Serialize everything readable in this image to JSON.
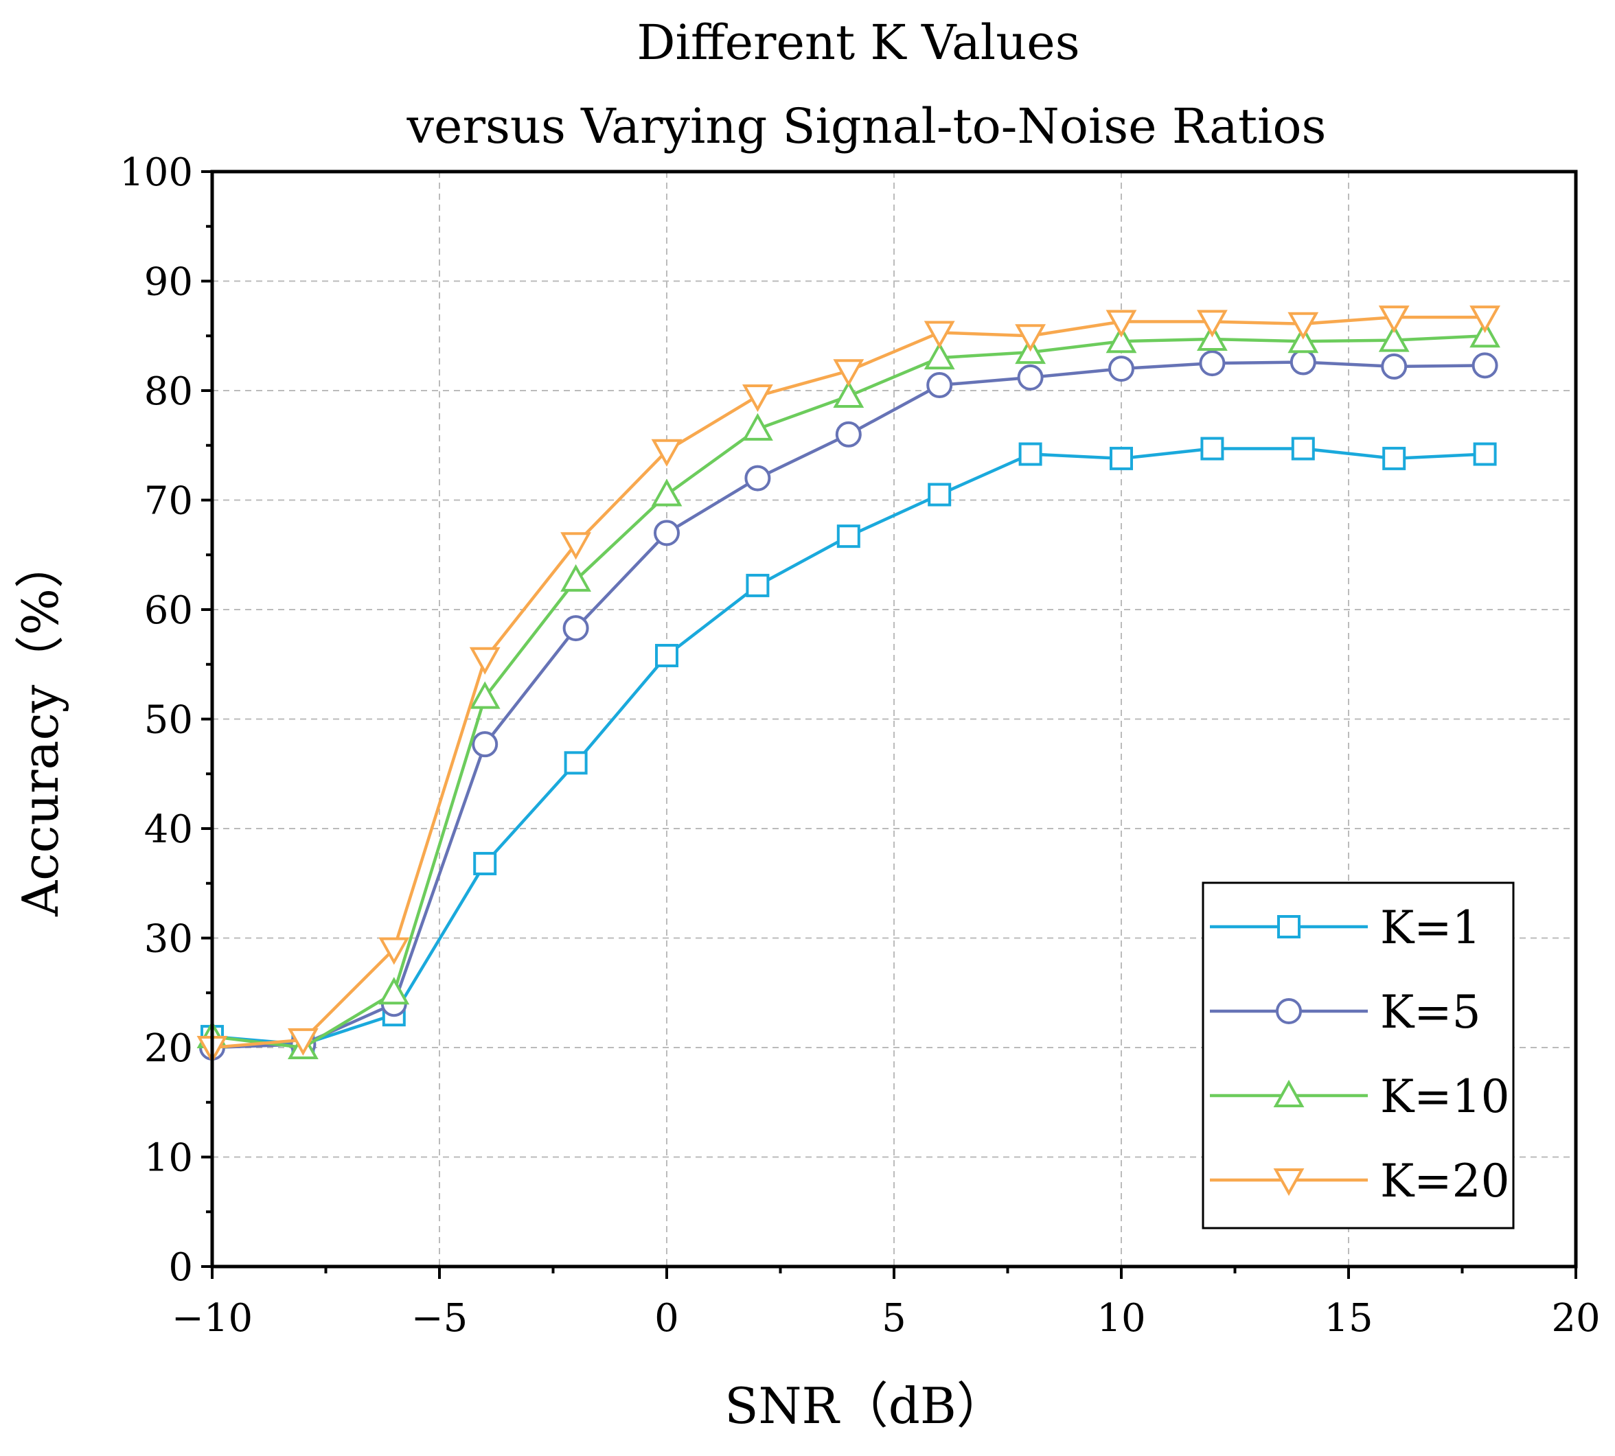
{
  "chart_data": {
    "type": "line",
    "title": "Different K Values",
    "subtitle": "versus Varying Signal-to-Noise Ratios",
    "xlabel": "SNR（dB）",
    "ylabel": "Accuracy（%）",
    "xlim": [
      -10,
      20
    ],
    "ylim": [
      0,
      100
    ],
    "x_ticks": [
      -10,
      -5,
      0,
      5,
      10,
      15,
      20
    ],
    "x_tick_labels": [
      "−10",
      "−5",
      "0",
      "5",
      "10",
      "15",
      "20"
    ],
    "y_ticks": [
      0,
      10,
      20,
      30,
      40,
      50,
      60,
      70,
      80,
      90,
      100
    ],
    "y_tick_labels": [
      "0",
      "10",
      "20",
      "30",
      "40",
      "50",
      "60",
      "70",
      "80",
      "90",
      "100"
    ],
    "grid": true,
    "legend_position": "bottom-right",
    "x": [
      -10,
      -8,
      -6,
      -4,
      -2,
      0,
      2,
      4,
      6,
      8,
      10,
      12,
      14,
      16,
      18
    ],
    "series": [
      {
        "name": "K=1",
        "marker": "square",
        "color": "#1aa9dc",
        "values": [
          21.0,
          20.3,
          23.0,
          36.8,
          46.0,
          55.8,
          62.2,
          66.7,
          70.5,
          74.2,
          73.8,
          74.7,
          74.7,
          73.8,
          74.2
        ]
      },
      {
        "name": "K=5",
        "marker": "circle",
        "color": "#6673b6",
        "values": [
          20.0,
          20.3,
          24.0,
          47.7,
          58.3,
          67.0,
          72.0,
          76.0,
          80.5,
          81.2,
          82.0,
          82.5,
          82.6,
          82.2,
          82.3
        ]
      },
      {
        "name": "K=10",
        "marker": "triangle-up",
        "color": "#6ccc5c",
        "values": [
          21.0,
          20.0,
          25.0,
          52.0,
          62.7,
          70.5,
          76.5,
          79.5,
          83.0,
          83.5,
          84.5,
          84.7,
          84.5,
          84.6,
          85.0
        ]
      },
      {
        "name": "K=20",
        "marker": "triangle-down",
        "color": "#f8a84e",
        "values": [
          20.0,
          20.7,
          29.0,
          55.5,
          66.0,
          74.5,
          79.5,
          81.8,
          85.3,
          85.0,
          86.3,
          86.3,
          86.1,
          86.7,
          86.7
        ]
      }
    ]
  }
}
